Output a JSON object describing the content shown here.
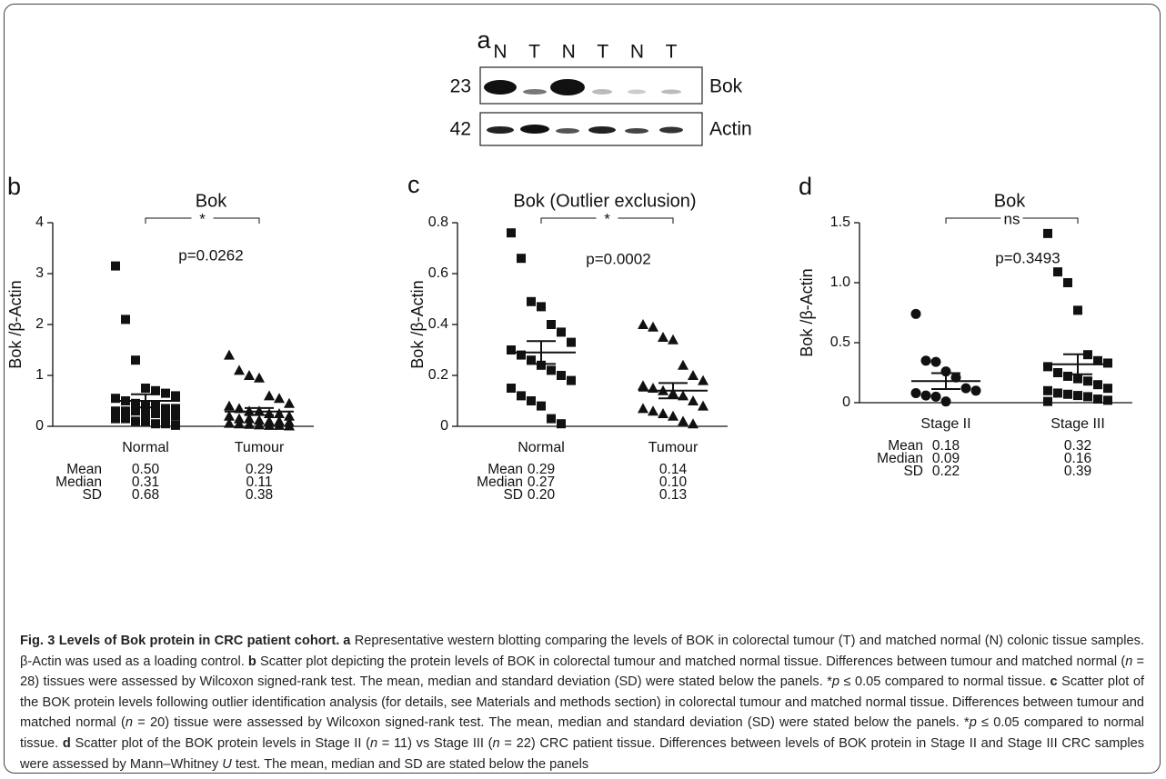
{
  "blot": {
    "letter": "a",
    "lanes": [
      "N",
      "T",
      "N",
      "T",
      "N",
      "T"
    ],
    "rows": [
      {
        "mw": "23",
        "label": "Bok"
      },
      {
        "mw": "42",
        "label": "Actin"
      }
    ]
  },
  "chart_data": [
    {
      "type": "dot",
      "letter": "b",
      "title": "Bok",
      "ylabel": "Bok /β-Actin",
      "categories": [
        "Normal",
        "Tumour"
      ],
      "markers": [
        "square",
        "triangle"
      ],
      "values": [
        [
          3.15,
          2.1,
          1.3,
          0.75,
          0.7,
          0.65,
          0.6,
          0.55,
          0.5,
          0.45,
          0.4,
          0.4,
          0.35,
          0.35,
          0.3,
          0.3,
          0.3,
          0.25,
          0.25,
          0.2,
          0.2,
          0.15,
          0.15,
          0.1,
          0.1,
          0.05,
          0.05,
          0.02
        ],
        [
          1.4,
          1.1,
          1.0,
          0.95,
          0.6,
          0.55,
          0.45,
          0.4,
          0.35,
          0.3,
          0.3,
          0.25,
          0.25,
          0.2,
          0.2,
          0.15,
          0.15,
          0.12,
          0.1,
          0.1,
          0.08,
          0.06,
          0.05,
          0.04,
          0.03,
          0.02,
          0.02,
          0.01
        ]
      ],
      "sem": [
        0.13,
        0.07
      ],
      "ylim": [
        0,
        4
      ],
      "yticks": [
        0,
        1,
        2,
        3,
        4
      ],
      "significance": {
        "label": "*",
        "p_label": "p=0.0262"
      },
      "stats": {
        "rows": [
          {
            "label": "Mean",
            "values": [
              0.5,
              0.29
            ],
            "value_labels": [
              "0.50",
              "0.29"
            ]
          },
          {
            "label": "Median",
            "values": [
              0.31,
              0.11
            ],
            "value_labels": [
              "0.31",
              "0.11"
            ]
          },
          {
            "label": "SD",
            "values": [
              0.68,
              0.38
            ],
            "value_labels": [
              "0.68",
              "0.38"
            ]
          }
        ]
      }
    },
    {
      "type": "dot",
      "letter": "c",
      "title": "Bok (Outlier exclusion)",
      "ylabel": "Bok /β-Actin",
      "categories": [
        "Normal",
        "Tumour"
      ],
      "markers": [
        "square",
        "triangle"
      ],
      "values": [
        [
          0.76,
          0.66,
          0.49,
          0.47,
          0.4,
          0.37,
          0.33,
          0.3,
          0.28,
          0.26,
          0.24,
          0.22,
          0.2,
          0.18,
          0.15,
          0.12,
          0.1,
          0.08,
          0.03,
          0.01
        ],
        [
          0.4,
          0.39,
          0.35,
          0.34,
          0.24,
          0.2,
          0.18,
          0.16,
          0.15,
          0.14,
          0.13,
          0.12,
          0.1,
          0.08,
          0.07,
          0.06,
          0.05,
          0.04,
          0.02,
          0.01
        ]
      ],
      "sem": [
        0.045,
        0.03
      ],
      "ylim": [
        0,
        0.8
      ],
      "yticks": [
        0,
        0.2,
        0.4,
        0.6,
        0.8
      ],
      "significance": {
        "label": "*",
        "p_label": "p=0.0002"
      },
      "stats": {
        "rows": [
          {
            "label": "Mean",
            "values": [
              0.29,
              0.14
            ],
            "value_labels": [
              "0.29",
              "0.14"
            ]
          },
          {
            "label": "Median",
            "values": [
              0.27,
              0.1
            ],
            "value_labels": [
              "0.27",
              "0.10"
            ]
          },
          {
            "label": "SD",
            "values": [
              0.2,
              0.13
            ],
            "value_labels": [
              "0.20",
              "0.13"
            ]
          }
        ]
      }
    },
    {
      "type": "dot",
      "letter": "d",
      "title": "Bok",
      "ylabel": "Bok /β-Actin",
      "categories": [
        "Stage II",
        "Stage III"
      ],
      "markers": [
        "circle",
        "square"
      ],
      "values": [
        [
          0.74,
          0.35,
          0.34,
          0.26,
          0.21,
          0.12,
          0.1,
          0.08,
          0.06,
          0.05,
          0.01
        ],
        [
          1.41,
          1.09,
          1.0,
          0.77,
          0.4,
          0.35,
          0.33,
          0.3,
          0.25,
          0.22,
          0.2,
          0.18,
          0.15,
          0.12,
          0.1,
          0.08,
          0.07,
          0.06,
          0.05,
          0.03,
          0.02,
          0.01
        ]
      ],
      "sem": [
        0.066,
        0.083
      ],
      "ylim": [
        0,
        1.5
      ],
      "yticks": [
        0,
        0.5,
        {
          "value": 1,
          "label": "1.0"
        },
        1.5
      ],
      "significance": {
        "label": "ns",
        "p_label": "p=0.3493"
      },
      "stats": {
        "rows": [
          {
            "label": "Mean",
            "values": [
              0.18,
              0.32
            ],
            "value_labels": [
              "0.18",
              "0.32"
            ]
          },
          {
            "label": "Median",
            "values": [
              0.09,
              0.16
            ],
            "value_labels": [
              "0.09",
              "0.16"
            ]
          },
          {
            "label": "SD",
            "values": [
              0.22,
              0.39
            ],
            "value_labels": [
              "0.22",
              "0.39"
            ]
          }
        ]
      }
    }
  ],
  "caption": {
    "parts": [
      {
        "text": "Fig. 3 Levels of Bok protein in CRC patient cohort.",
        "style": "bold"
      },
      {
        "text": "a",
        "style": "bold"
      },
      {
        "text": " Representative western blotting comparing the levels of BOK in colorectal tumour (T) and matched normal (N) colonic tissue samples. β-Actin was used as a loading control. ",
        "style": "normal"
      },
      {
        "text": "b",
        "style": "bold"
      },
      {
        "text": " Scatter plot depicting the protein levels of BOK in colorectal tumour and matched normal tissue. Differences between tumour and matched normal (",
        "style": "normal"
      },
      {
        "text": "n",
        "style": "italic"
      },
      {
        "text": " = 28) tissues were assessed by Wilcoxon signed-rank test. The mean, median and standard deviation (SD) were stated below the panels. *",
        "style": "normal"
      },
      {
        "text": "p",
        "style": "italic"
      },
      {
        "text": " ≤ 0.05 compared to normal tissue. ",
        "style": "normal"
      },
      {
        "text": "c",
        "style": "bold"
      },
      {
        "text": " Scatter plot of the BOK protein levels following outlier identification analysis (for details, see Materials and methods section) in colorectal tumour and matched normal tissue. Differences between tumour and matched normal (",
        "style": "normal"
      },
      {
        "text": "n",
        "style": "italic"
      },
      {
        "text": " = 20) tissue were assessed by Wilcoxon signed-rank test. The mean, median and standard deviation (SD) were stated below the panels. *",
        "style": "normal"
      },
      {
        "text": "p",
        "style": "italic"
      },
      {
        "text": " ≤ 0.05 compared to normal tissue. ",
        "style": "normal"
      },
      {
        "text": "d",
        "style": "bold"
      },
      {
        "text": " Scatter plot of the BOK protein levels in Stage II (",
        "style": "normal"
      },
      {
        "text": "n",
        "style": "italic"
      },
      {
        "text": " = 11) vs Stage III (",
        "style": "normal"
      },
      {
        "text": "n",
        "style": "italic"
      },
      {
        "text": " = 22) CRC patient tissue. Differences between levels of BOK protein in Stage II and Stage III CRC samples were assessed by Mann–Whitney ",
        "style": "normal"
      },
      {
        "text": "U",
        "style": "italic"
      },
      {
        "text": " test. The mean, median and SD are stated below the panels",
        "style": "normal"
      }
    ]
  }
}
